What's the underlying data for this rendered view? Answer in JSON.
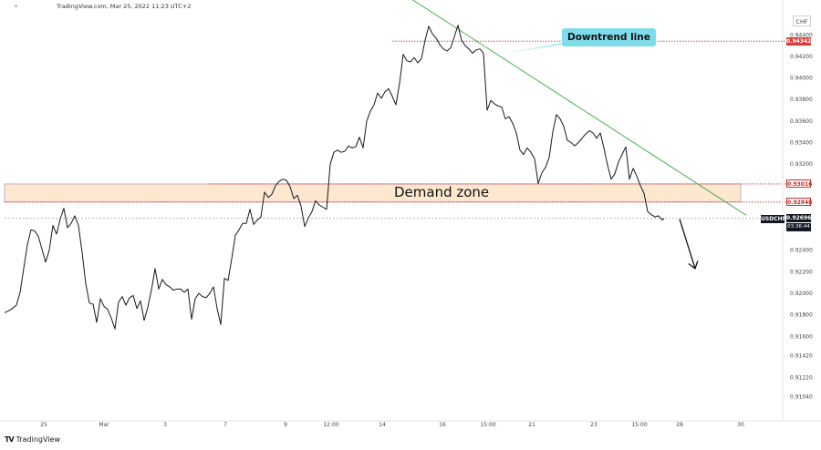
{
  "header": {
    "source_line": "TradingView.com, Mar 25, 2022 11:23 UTC+2",
    "currency": "CHF"
  },
  "logo": {
    "text": "TradingView",
    "icon": "tradingview-logo-icon"
  },
  "annotations": {
    "downtrend_label": "Downtrend line",
    "demand_zone_label": "Demand zone"
  },
  "price_tags": {
    "resistance": "0.94342",
    "zone_top": "0.93016",
    "zone_bottom": "0.92848",
    "current": "0.92696",
    "symbol": "USDCHF",
    "countdown": "03:36:44"
  },
  "colors": {
    "price_line": "#131722",
    "trend_line": "#4caf50",
    "callout_bg": "#7fdcea",
    "zone_fill": "#fde7cf",
    "level_red": "#d32f2f",
    "axis_text": "#444444"
  },
  "chart_data": {
    "type": "line",
    "symbol": "USDCHF",
    "y_axis": {
      "range": [
        0.9085,
        0.9458
      ],
      "ticks": [
        0.9104,
        0.9122,
        0.9142,
        0.916,
        0.918,
        0.92,
        0.922,
        0.924,
        0.926,
        0.928,
        0.93,
        0.932,
        0.934,
        0.936,
        0.938,
        0.94,
        0.942,
        0.944
      ],
      "tick_labels": [
        "0.91040",
        "0.91220",
        "0.91420",
        "0.91600",
        "0.91800",
        "0.92000",
        "0.92200",
        "0.92400",
        "",
        "",
        "",
        "0.93200",
        "0.93400",
        "0.93600",
        "0.93800",
        "0.94000",
        "0.94200",
        "0.94400"
      ]
    },
    "x_axis": {
      "range": [
        0,
        855
      ],
      "ticks": [
        {
          "x": 48,
          "label": "25"
        },
        {
          "x": 114,
          "label": "Mar"
        },
        {
          "x": 181,
          "label": "3"
        },
        {
          "x": 247,
          "label": "7"
        },
        {
          "x": 313,
          "label": "9"
        },
        {
          "x": 363,
          "label": "12:00"
        },
        {
          "x": 419,
          "label": "14"
        },
        {
          "x": 485,
          "label": "16"
        },
        {
          "x": 535,
          "label": "15:00"
        },
        {
          "x": 583,
          "label": "21"
        },
        {
          "x": 651,
          "label": "23"
        },
        {
          "x": 701,
          "label": "15:00"
        },
        {
          "x": 745,
          "label": "28"
        },
        {
          "x": 812,
          "label": "30"
        }
      ]
    },
    "series": [
      {
        "values": [
          [
            5,
            0.9182
          ],
          [
            12,
            0.9185
          ],
          [
            18,
            0.9189
          ],
          [
            22,
            0.9201
          ],
          [
            26,
            0.9223
          ],
          [
            30,
            0.9245
          ],
          [
            34,
            0.9259
          ],
          [
            38,
            0.9258
          ],
          [
            42,
            0.9253
          ],
          [
            46,
            0.9241
          ],
          [
            50,
            0.9229
          ],
          [
            54,
            0.924
          ],
          [
            58,
            0.9263
          ],
          [
            62,
            0.9255
          ],
          [
            66,
            0.9269
          ],
          [
            70,
            0.9279
          ],
          [
            74,
            0.9261
          ],
          [
            78,
            0.9265
          ],
          [
            82,
            0.9272
          ],
          [
            86,
            0.9263
          ],
          [
            90,
            0.9238
          ],
          [
            94,
            0.9209
          ],
          [
            98,
            0.9191
          ],
          [
            102,
            0.919
          ],
          [
            106,
            0.9173
          ],
          [
            110,
            0.9195
          ],
          [
            114,
            0.9188
          ],
          [
            118,
            0.9185
          ],
          [
            122,
            0.9177
          ],
          [
            126,
            0.9167
          ],
          [
            130,
            0.9192
          ],
          [
            134,
            0.9197
          ],
          [
            138,
            0.9189
          ],
          [
            142,
            0.9196
          ],
          [
            146,
            0.9198
          ],
          [
            150,
            0.9186
          ],
          [
            154,
            0.9193
          ],
          [
            158,
            0.9175
          ],
          [
            162,
            0.9187
          ],
          [
            166,
            0.9203
          ],
          [
            170,
            0.9223
          ],
          [
            174,
            0.9204
          ],
          [
            178,
            0.9213
          ],
          [
            182,
            0.9208
          ],
          [
            186,
            0.9206
          ],
          [
            190,
            0.9203
          ],
          [
            194,
            0.9204
          ],
          [
            198,
            0.9204
          ],
          [
            202,
            0.9201
          ],
          [
            206,
            0.9204
          ],
          [
            210,
            0.9176
          ],
          [
            214,
            0.9195
          ],
          [
            218,
            0.92
          ],
          [
            222,
            0.9197
          ],
          [
            226,
            0.9196
          ],
          [
            230,
            0.92
          ],
          [
            234,
            0.9206
          ],
          [
            238,
            0.9186
          ],
          [
            242,
            0.9171
          ],
          [
            246,
            0.9214
          ],
          [
            250,
            0.9212
          ],
          [
            254,
            0.9232
          ],
          [
            258,
            0.9254
          ],
          [
            262,
            0.9259
          ],
          [
            266,
            0.9265
          ],
          [
            270,
            0.9265
          ],
          [
            274,
            0.9278
          ],
          [
            278,
            0.9264
          ],
          [
            282,
            0.9268
          ],
          [
            286,
            0.9271
          ],
          [
            290,
            0.9294
          ],
          [
            294,
            0.9289
          ],
          [
            298,
            0.9292
          ],
          [
            302,
            0.93
          ],
          [
            306,
            0.9304
          ],
          [
            310,
            0.9306
          ],
          [
            314,
            0.9305
          ],
          [
            318,
            0.9299
          ],
          [
            322,
            0.9288
          ],
          [
            326,
            0.9291
          ],
          [
            330,
            0.9281
          ],
          [
            334,
            0.9262
          ],
          [
            338,
            0.927
          ],
          [
            342,
            0.9276
          ],
          [
            346,
            0.9286
          ],
          [
            350,
            0.9282
          ],
          [
            354,
            0.928
          ],
          [
            358,
            0.9278
          ],
          [
            362,
            0.932
          ],
          [
            366,
            0.9331
          ],
          [
            370,
            0.9333
          ],
          [
            374,
            0.9331
          ],
          [
            378,
            0.9332
          ],
          [
            382,
            0.9337
          ],
          [
            386,
            0.9335
          ],
          [
            390,
            0.9336
          ],
          [
            394,
            0.9345
          ],
          [
            398,
            0.9335
          ],
          [
            402,
            0.936
          ],
          [
            406,
            0.9369
          ],
          [
            410,
            0.9375
          ],
          [
            414,
            0.9386
          ],
          [
            418,
            0.9381
          ],
          [
            422,
            0.9387
          ],
          [
            426,
            0.939
          ],
          [
            430,
            0.9383
          ],
          [
            434,
            0.9375
          ],
          [
            438,
            0.9395
          ],
          [
            442,
            0.9422
          ],
          [
            446,
            0.9416
          ],
          [
            450,
            0.9415
          ],
          [
            454,
            0.9419
          ],
          [
            458,
            0.9414
          ],
          [
            462,
            0.9418
          ],
          [
            466,
            0.9435
          ],
          [
            470,
            0.9448
          ],
          [
            474,
            0.9441
          ],
          [
            478,
            0.9437
          ],
          [
            482,
            0.9431
          ],
          [
            486,
            0.9427
          ],
          [
            490,
            0.9425
          ],
          [
            494,
            0.9428
          ],
          [
            498,
            0.9438
          ],
          [
            502,
            0.9449
          ],
          [
            506,
            0.9435
          ],
          [
            510,
            0.943
          ],
          [
            514,
            0.9427
          ],
          [
            518,
            0.9423
          ],
          [
            522,
            0.9426
          ],
          [
            526,
            0.9427
          ],
          [
            530,
            0.9423
          ],
          [
            534,
            0.937
          ],
          [
            538,
            0.9379
          ],
          [
            542,
            0.9376
          ],
          [
            546,
            0.9374
          ],
          [
            550,
            0.9373
          ],
          [
            554,
            0.9362
          ],
          [
            558,
            0.9364
          ],
          [
            562,
            0.9358
          ],
          [
            566,
            0.9349
          ],
          [
            570,
            0.9333
          ],
          [
            574,
            0.9329
          ],
          [
            578,
            0.9335
          ],
          [
            582,
            0.9331
          ],
          [
            586,
            0.9325
          ],
          [
            590,
            0.9302
          ],
          [
            594,
            0.9312
          ],
          [
            598,
            0.9317
          ],
          [
            602,
            0.9326
          ],
          [
            606,
            0.935
          ],
          [
            610,
            0.9366
          ],
          [
            614,
            0.9362
          ],
          [
            618,
            0.9355
          ],
          [
            622,
            0.9342
          ],
          [
            626,
            0.934
          ],
          [
            630,
            0.9337
          ],
          [
            634,
            0.934
          ],
          [
            638,
            0.9344
          ],
          [
            642,
            0.9348
          ],
          [
            646,
            0.9351
          ],
          [
            650,
            0.9349
          ],
          [
            654,
            0.9344
          ],
          [
            658,
            0.9349
          ],
          [
            662,
            0.9335
          ],
          [
            666,
            0.9319
          ],
          [
            670,
            0.9306
          ],
          [
            674,
            0.9311
          ],
          [
            678,
            0.9322
          ],
          [
            682,
            0.9329
          ],
          [
            686,
            0.9336
          ],
          [
            690,
            0.9306
          ],
          [
            694,
            0.9316
          ],
          [
            698,
            0.9309
          ],
          [
            702,
            0.93
          ],
          [
            706,
            0.9293
          ],
          [
            710,
            0.9276
          ],
          [
            714,
            0.9273
          ],
          [
            718,
            0.9271
          ],
          [
            722,
            0.9272
          ],
          [
            726,
            0.9268
          ],
          [
            728,
            0.92696
          ]
        ]
      }
    ],
    "demand_zone": {
      "top": 0.93016,
      "bottom": 0.92848,
      "x_start": 5,
      "x_end": 812
    },
    "horizontal_levels": [
      {
        "price": 0.94342,
        "x_start": 430,
        "x_end": 862,
        "style": "dotted-red"
      },
      {
        "price": 0.93016,
        "x_start": 230,
        "x_end": 862,
        "style": "dotted-red"
      },
      {
        "price": 0.92848,
        "x_start": 5,
        "x_end": 862,
        "style": "dotted-red"
      },
      {
        "price": 0.92696,
        "x_start": 5,
        "x_end": 862,
        "style": "dotted-gray"
      }
    ],
    "trend_line": {
      "start": [
        446,
        0.9476
      ],
      "end": [
        818,
        0.92725
      ]
    },
    "projection_arrow": {
      "start": [
        745,
        0.9269
      ],
      "end": [
        762,
        0.9223
      ]
    },
    "callout_pointer": {
      "tip": [
        555,
        0.9423
      ]
    }
  }
}
